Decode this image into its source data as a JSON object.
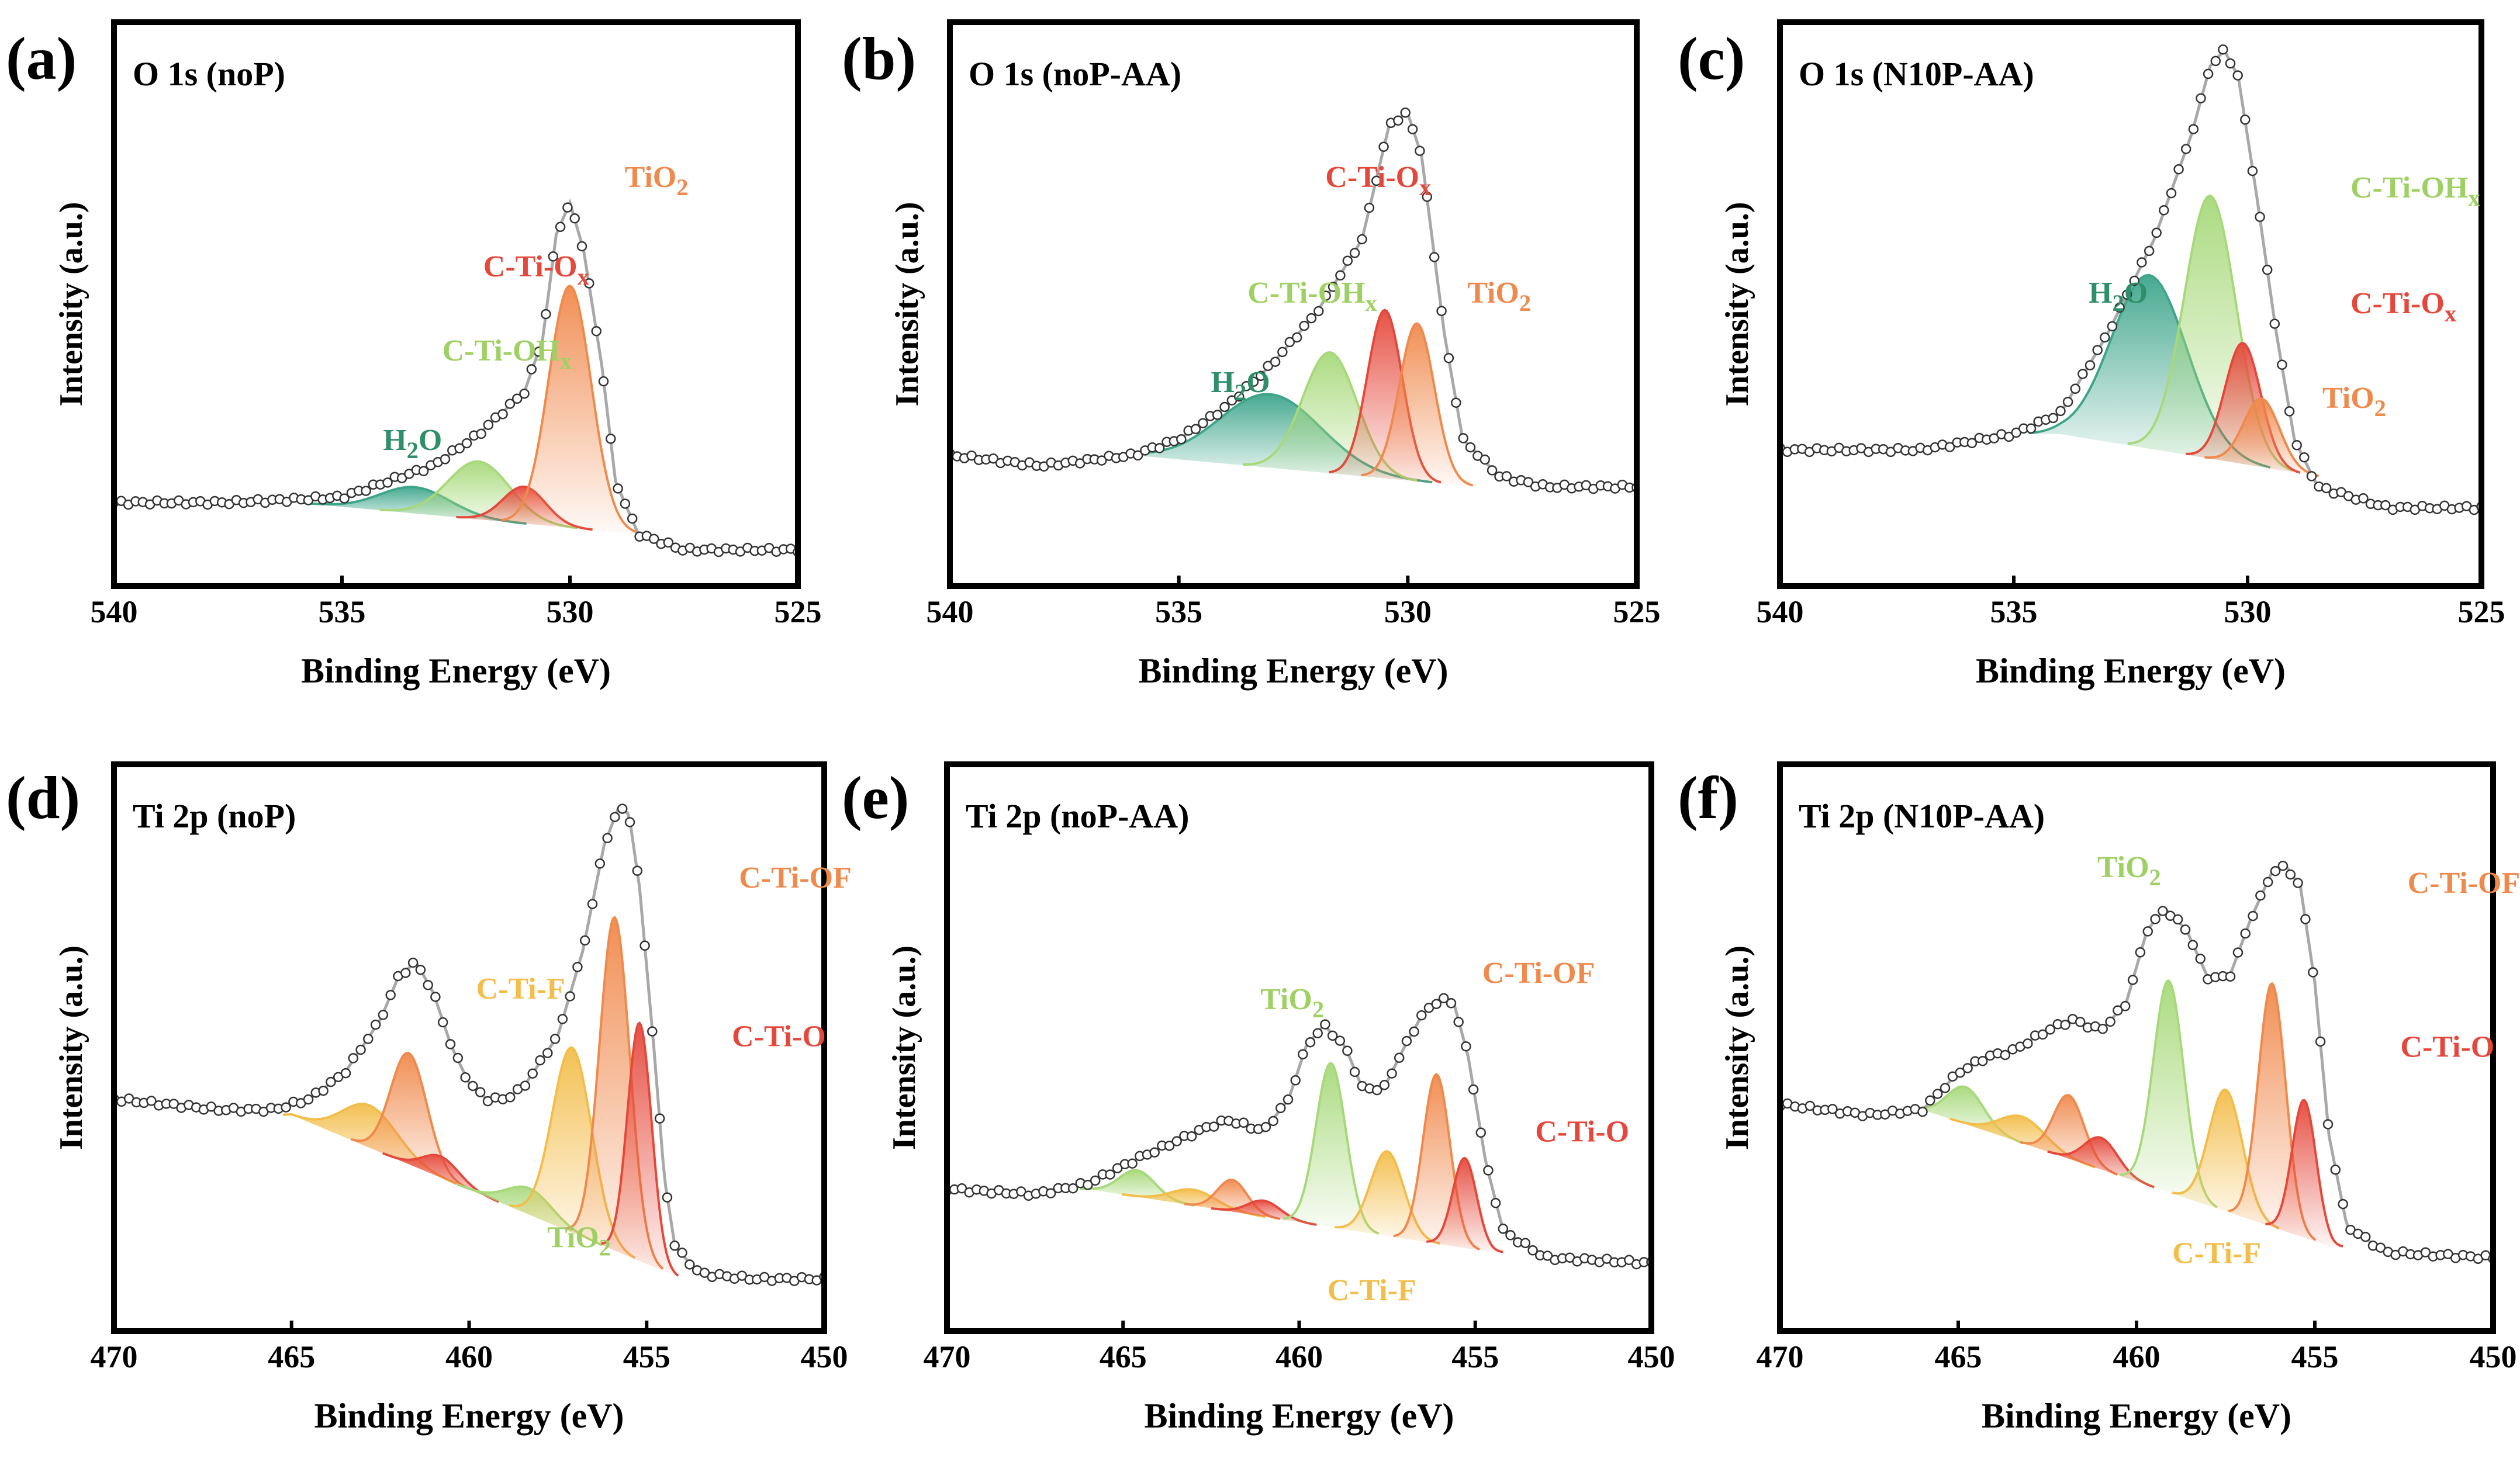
{
  "figure": {
    "panels_description": "XPS fitting, six panels"
  },
  "chart_data": [
    {
      "panel": "(a)",
      "type": "line",
      "title": "O 1s (noP)",
      "xlabel": "Binding Energy (eV)",
      "ylabel": "Intensity (a.u.)",
      "xlim": [
        540,
        525
      ],
      "xticks": [
        540,
        535,
        530,
        525
      ],
      "baseline": [
        [
          536,
          0.12
        ],
        [
          528.5,
          0.06
        ]
      ],
      "bg": [
        [
          540,
          0.12
        ],
        [
          537.5,
          0.12
        ],
        [
          535,
          0.13
        ],
        [
          534,
          0.16
        ],
        [
          533,
          0.19
        ],
        [
          532,
          0.25
        ],
        [
          531,
          0.33
        ],
        [
          530.6,
          0.43
        ],
        [
          530.3,
          0.63
        ],
        [
          530.0,
          0.69
        ],
        [
          529.7,
          0.6
        ],
        [
          529.3,
          0.38
        ],
        [
          529.0,
          0.16
        ],
        [
          528.5,
          0.06
        ],
        [
          527.5,
          0.03
        ],
        [
          525,
          0.03
        ]
      ],
      "peaks": [
        {
          "name": "H2O",
          "label": "H₂O",
          "center": 533.4,
          "height": 0.05,
          "fwhm": 1.8,
          "color": "#3da58a"
        },
        {
          "name": "C-Ti-OHx",
          "label": "C-Ti-OHₓ",
          "center": 532.0,
          "height": 0.11,
          "fwhm": 1.6,
          "color": "#a7d97a"
        },
        {
          "name": "C-Ti-Ox",
          "label": "C-Ti-Oₓ",
          "center": 531.0,
          "height": 0.07,
          "fwhm": 1.1,
          "color": "#e5483b"
        },
        {
          "name": "TiO2",
          "label": "TiO₂",
          "center": 530.0,
          "height": 0.46,
          "fwhm": 1.1,
          "color": "#f0894c"
        }
      ],
      "labels": [
        {
          "text": "H₂O",
          "color": "#2f8f6b",
          "at": [
            534.1,
            0.22
          ]
        },
        {
          "text": "C-Ti-OHₓ",
          "color": "#9fd063",
          "at": [
            532.8,
            0.39
          ]
        },
        {
          "text": "C-Ti-Oₓ",
          "color": "#e5483b",
          "at": [
            531.9,
            0.55
          ]
        },
        {
          "text": "TiO₂",
          "color": "#f0894c",
          "at": [
            528.8,
            0.72
          ]
        }
      ]
    },
    {
      "panel": "(b)",
      "type": "line",
      "title": "O 1s (noP-AA)",
      "xlabel": "Binding Energy (eV)",
      "ylabel": "Intensity (a.u.)",
      "xlim": [
        540,
        525
      ],
      "xticks": [
        540,
        535,
        530,
        525
      ],
      "baseline": [
        [
          536,
          0.21
        ],
        [
          528.5,
          0.15
        ]
      ],
      "bg": [
        [
          540,
          0.21
        ],
        [
          538,
          0.19
        ],
        [
          536,
          0.21
        ],
        [
          535,
          0.24
        ],
        [
          534,
          0.3
        ],
        [
          533,
          0.38
        ],
        [
          532,
          0.48
        ],
        [
          531,
          0.62
        ],
        [
          530.4,
          0.84
        ],
        [
          530,
          0.86
        ],
        [
          529.7,
          0.78
        ],
        [
          529.2,
          0.44
        ],
        [
          528.8,
          0.24
        ],
        [
          528,
          0.17
        ],
        [
          527,
          0.15
        ],
        [
          525,
          0.15
        ]
      ],
      "peaks": [
        {
          "name": "H2O",
          "label": "H₂O",
          "center": 533.0,
          "height": 0.14,
          "fwhm": 2.6,
          "color": "#3da58a"
        },
        {
          "name": "C-Ti-OHx",
          "label": "C-Ti-OHₓ",
          "center": 531.7,
          "height": 0.23,
          "fwhm": 1.4,
          "color": "#a7d97a"
        },
        {
          "name": "C-Ti-Ox",
          "label": "C-Ti-Oₓ",
          "center": 530.5,
          "height": 0.32,
          "fwhm": 0.9,
          "color": "#e5483b"
        },
        {
          "name": "TiO2",
          "label": "TiO₂",
          "center": 529.8,
          "height": 0.3,
          "fwhm": 0.9,
          "color": "#f0894c"
        }
      ],
      "labels": [
        {
          "text": "H₂O",
          "color": "#2f8f6b",
          "at": [
            534.3,
            0.33
          ]
        },
        {
          "text": "C-Ti-OHₓ",
          "color": "#9fd063",
          "at": [
            533.5,
            0.5
          ]
        },
        {
          "text": "C-Ti-Oₓ",
          "color": "#e5483b",
          "at": [
            531.8,
            0.72
          ]
        },
        {
          "text": "TiO₂",
          "color": "#f0894c",
          "at": [
            528.7,
            0.5
          ]
        }
      ]
    },
    {
      "panel": "(c)",
      "type": "line",
      "title": "O 1s (N10P-AA)",
      "xlabel": "Binding Energy (eV)",
      "ylabel": "Intensity (a.u.)",
      "xlim": [
        540,
        525
      ],
      "xticks": [
        540,
        535,
        530,
        525
      ],
      "baseline": [
        [
          534,
          0.25
        ],
        [
          528.5,
          0.17
        ]
      ],
      "bg": [
        [
          540,
          0.22
        ],
        [
          537,
          0.22
        ],
        [
          535,
          0.25
        ],
        [
          534,
          0.29
        ],
        [
          533,
          0.44
        ],
        [
          532,
          0.62
        ],
        [
          531.2,
          0.82
        ],
        [
          530.8,
          0.95
        ],
        [
          530.5,
          0.98
        ],
        [
          530.2,
          0.93
        ],
        [
          529.8,
          0.7
        ],
        [
          529.4,
          0.45
        ],
        [
          529.0,
          0.24
        ],
        [
          528.5,
          0.15
        ],
        [
          527,
          0.11
        ],
        [
          525,
          0.11
        ]
      ],
      "peaks": [
        {
          "name": "H2O",
          "label": "H₂O",
          "center": 532.1,
          "height": 0.33,
          "fwhm": 1.9,
          "color": "#3da58a"
        },
        {
          "name": "C-Ti-OHx",
          "label": "C-Ti-OHₓ",
          "center": 530.8,
          "height": 0.5,
          "fwhm": 1.3,
          "color": "#a7d97a"
        },
        {
          "name": "C-Ti-Ox",
          "label": "C-Ti-Oₓ",
          "center": 530.1,
          "height": 0.23,
          "fwhm": 0.9,
          "color": "#e5483b"
        },
        {
          "name": "TiO2",
          "label": "TiO₂",
          "center": 529.7,
          "height": 0.13,
          "fwhm": 0.9,
          "color": "#f0894c"
        }
      ],
      "labels": [
        {
          "text": "H₂O",
          "color": "#2f8f6b",
          "at": [
            533.4,
            0.5
          ]
        },
        {
          "text": "C-Ti-OHₓ",
          "color": "#9fd063",
          "at": [
            527.8,
            0.7
          ]
        },
        {
          "text": "C-Ti-Oₓ",
          "color": "#e5483b",
          "at": [
            527.8,
            0.48
          ]
        },
        {
          "text": "TiO₂",
          "color": "#f0894c",
          "at": [
            528.4,
            0.3
          ]
        }
      ]
    },
    {
      "panel": "(d)",
      "type": "line",
      "title": "Ti 2p (noP)",
      "xlabel": "Binding Energy (eV)",
      "ylabel": "Intensity (a.u.)",
      "xlim": [
        470,
        450
      ],
      "xticks": [
        470,
        465,
        460,
        455,
        450
      ],
      "baseline": [
        [
          465,
          0.37
        ],
        [
          454,
          0.06
        ]
      ],
      "bg": [
        [
          470,
          0.4
        ],
        [
          467,
          0.38
        ],
        [
          465.5,
          0.38
        ],
        [
          464.5,
          0.4
        ],
        [
          463.5,
          0.45
        ],
        [
          462.5,
          0.55
        ],
        [
          462,
          0.63
        ],
        [
          461.5,
          0.66
        ],
        [
          461,
          0.6
        ],
        [
          460.5,
          0.5
        ],
        [
          460,
          0.43
        ],
        [
          459.5,
          0.4
        ],
        [
          459,
          0.4
        ],
        [
          458.5,
          0.42
        ],
        [
          457.5,
          0.52
        ],
        [
          456.8,
          0.68
        ],
        [
          456.2,
          0.88
        ],
        [
          455.8,
          0.95
        ],
        [
          455.5,
          0.94
        ],
        [
          455.2,
          0.8
        ],
        [
          454.8,
          0.5
        ],
        [
          454.5,
          0.25
        ],
        [
          454.2,
          0.12
        ],
        [
          453.5,
          0.07
        ],
        [
          452,
          0.06
        ],
        [
          450,
          0.06
        ]
      ],
      "peaks": [
        {
          "name": "C-Ti-F (2p1/2)",
          "label": "",
          "center": 462.8,
          "height": 0.08,
          "fwhm": 1.8,
          "color": "#f3bd4a"
        },
        {
          "name": "C-Ti-OF (2p1/2)",
          "label": "",
          "center": 461.7,
          "height": 0.21,
          "fwhm": 1.2,
          "color": "#f0894c"
        },
        {
          "name": "C-Ti-O (2p1/2)",
          "label": "",
          "center": 460.8,
          "height": 0.04,
          "fwhm": 1.2,
          "color": "#e5483b"
        },
        {
          "name": "TiO2 (2p3/2)",
          "label": "",
          "center": 458.3,
          "height": 0.05,
          "fwhm": 1.5,
          "color": "#a7d97a"
        },
        {
          "name": "C-Ti-F (2p3/2)",
          "label": "",
          "center": 457.1,
          "height": 0.35,
          "fwhm": 1.3,
          "color": "#f3bd4a"
        },
        {
          "name": "C-Ti-OF (2p3/2)",
          "label": "",
          "center": 455.9,
          "height": 0.63,
          "fwhm": 1.0,
          "color": "#f0894c"
        },
        {
          "name": "C-Ti-O (2p3/2)",
          "label": "",
          "center": 455.2,
          "height": 0.45,
          "fwhm": 0.8,
          "color": "#e5483b"
        }
      ],
      "labels": [
        {
          "text": "C-Ti-F",
          "color": "#f3bd4a",
          "at": [
            459.8,
            0.59
          ]
        },
        {
          "text": "C-Ti-OF",
          "color": "#f0894c",
          "at": [
            452.4,
            0.8
          ]
        },
        {
          "text": "C-Ti-O",
          "color": "#e5483b",
          "at": [
            452.6,
            0.5
          ]
        },
        {
          "text": "TiO₂",
          "color": "#9fd063",
          "at": [
            457.8,
            0.12
          ]
        }
      ]
    },
    {
      "panel": "(e)",
      "type": "line",
      "title": "Ti 2p (noP-AA)",
      "xlabel": "Binding Energy (eV)",
      "ylabel": "Intensity (a.u.)",
      "xlim": [
        470,
        450
      ],
      "xticks": [
        470,
        465,
        460,
        455,
        450
      ],
      "baseline": [
        [
          466,
          0.23
        ],
        [
          454.5,
          0.11
        ]
      ],
      "bg": [
        [
          470,
          0.23
        ],
        [
          467.5,
          0.22
        ],
        [
          466,
          0.24
        ],
        [
          464.5,
          0.29
        ],
        [
          463.5,
          0.32
        ],
        [
          462.5,
          0.35
        ],
        [
          462,
          0.36
        ],
        [
          461,
          0.34
        ],
        [
          460.3,
          0.4
        ],
        [
          459.8,
          0.5
        ],
        [
          459.3,
          0.54
        ],
        [
          458.7,
          0.5
        ],
        [
          458.2,
          0.42
        ],
        [
          457.6,
          0.42
        ],
        [
          457,
          0.5
        ],
        [
          456.5,
          0.56
        ],
        [
          456,
          0.59
        ],
        [
          455.6,
          0.58
        ],
        [
          455.2,
          0.48
        ],
        [
          454.7,
          0.28
        ],
        [
          454.2,
          0.15
        ],
        [
          453,
          0.1
        ],
        [
          450,
          0.09
        ]
      ],
      "peaks": [
        {
          "name": "TiO2 (2p1/2)",
          "label": "",
          "center": 464.6,
          "height": 0.05,
          "fwhm": 1.2,
          "color": "#a7d97a"
        },
        {
          "name": "C-Ti-F (2p1/2)",
          "label": "",
          "center": 463.0,
          "height": 0.03,
          "fwhm": 1.5,
          "color": "#f3bd4a"
        },
        {
          "name": "C-Ti-OF (2p1/2)",
          "label": "",
          "center": 461.9,
          "height": 0.06,
          "fwhm": 1.0,
          "color": "#f0894c"
        },
        {
          "name": "C-Ti-O (2p1/2)",
          "label": "",
          "center": 461.0,
          "height": 0.03,
          "fwhm": 1.1,
          "color": "#e5483b"
        },
        {
          "name": "TiO2 (2p3/2)",
          "label": "",
          "center": 459.1,
          "height": 0.31,
          "fwhm": 1.0,
          "color": "#a7d97a"
        },
        {
          "name": "C-Ti-F (2p3/2)",
          "label": "",
          "center": 457.5,
          "height": 0.16,
          "fwhm": 1.1,
          "color": "#f3bd4a"
        },
        {
          "name": "C-Ti-OF (2p3/2)",
          "label": "",
          "center": 456.1,
          "height": 0.32,
          "fwhm": 0.9,
          "color": "#f0894c"
        },
        {
          "name": "C-Ti-O (2p3/2)",
          "label": "",
          "center": 455.3,
          "height": 0.17,
          "fwhm": 0.8,
          "color": "#e5483b"
        }
      ],
      "labels": [
        {
          "text": "TiO₂",
          "color": "#9fd063",
          "at": [
            461.1,
            0.57
          ]
        },
        {
          "text": "C-Ti-OF",
          "color": "#f0894c",
          "at": [
            454.8,
            0.62
          ]
        },
        {
          "text": "C-Ti-O",
          "color": "#e5483b",
          "at": [
            453.3,
            0.32
          ]
        },
        {
          "text": "C-Ti-F",
          "color": "#f3bd4a",
          "at": [
            459.2,
            0.02
          ]
        }
      ]
    },
    {
      "panel": "(f)",
      "type": "line",
      "title": "Ti 2p (N10P-AA)",
      "xlabel": "Binding Energy (eV)",
      "ylabel": "Intensity (a.u.)",
      "xlim": [
        470,
        450
      ],
      "xticks": [
        470,
        465,
        460,
        455,
        450
      ],
      "baseline": [
        [
          466,
          0.38
        ],
        [
          454.5,
          0.12
        ]
      ],
      "bg": [
        [
          470,
          0.39
        ],
        [
          467.5,
          0.37
        ],
        [
          466,
          0.38
        ],
        [
          465,
          0.45
        ],
        [
          464.2,
          0.48
        ],
        [
          463.5,
          0.49
        ],
        [
          462.5,
          0.53
        ],
        [
          461.8,
          0.55
        ],
        [
          461,
          0.53
        ],
        [
          460.3,
          0.58
        ],
        [
          459.7,
          0.72
        ],
        [
          459.2,
          0.76
        ],
        [
          458.6,
          0.72
        ],
        [
          458,
          0.63
        ],
        [
          457.4,
          0.63
        ],
        [
          456.8,
          0.74
        ],
        [
          456.2,
          0.83
        ],
        [
          455.8,
          0.84
        ],
        [
          455.4,
          0.8
        ],
        [
          455,
          0.62
        ],
        [
          454.6,
          0.33
        ],
        [
          454.1,
          0.16
        ],
        [
          453,
          0.11
        ],
        [
          450,
          0.1
        ]
      ],
      "peaks": [
        {
          "name": "TiO2 (2p1/2)",
          "label": "",
          "center": 464.8,
          "height": 0.07,
          "fwhm": 1.2,
          "color": "#a7d97a"
        },
        {
          "name": "C-Ti-F (2p1/2)",
          "label": "",
          "center": 463.2,
          "height": 0.05,
          "fwhm": 1.5,
          "color": "#f3bd4a"
        },
        {
          "name": "C-Ti-OF (2p1/2)",
          "label": "",
          "center": 461.9,
          "height": 0.12,
          "fwhm": 1.0,
          "color": "#f0894c"
        },
        {
          "name": "C-Ti-O (2p1/2)",
          "label": "",
          "center": 461.0,
          "height": 0.06,
          "fwhm": 1.1,
          "color": "#e5483b"
        },
        {
          "name": "TiO2 (2p3/2)",
          "label": "",
          "center": 459.1,
          "height": 0.4,
          "fwhm": 1.0,
          "color": "#a7d97a"
        },
        {
          "name": "C-Ti-F (2p3/2)",
          "label": "",
          "center": 457.5,
          "height": 0.23,
          "fwhm": 1.1,
          "color": "#f3bd4a"
        },
        {
          "name": "C-Ti-OF (2p3/2)",
          "label": "",
          "center": 456.2,
          "height": 0.46,
          "fwhm": 0.9,
          "color": "#f0894c"
        },
        {
          "name": "C-Ti-O (2p3/2)",
          "label": "",
          "center": 455.3,
          "height": 0.26,
          "fwhm": 0.8,
          "color": "#e5483b"
        }
      ],
      "labels": [
        {
          "text": "TiO₂",
          "color": "#9fd063",
          "at": [
            461.1,
            0.82
          ]
        },
        {
          "text": "C-Ti-OF",
          "color": "#f0894c",
          "at": [
            452.4,
            0.79
          ]
        },
        {
          "text": "C-Ti-O",
          "color": "#e5483b",
          "at": [
            452.6,
            0.48
          ]
        },
        {
          "text": "C-Ti-F",
          "color": "#f3bd4a",
          "at": [
            459.0,
            0.09
          ]
        }
      ]
    }
  ],
  "colors": {
    "frame": "#000000",
    "envelope": "#a8a8a8",
    "marker_fill": "#ffffff",
    "marker_stroke": "#333333"
  }
}
